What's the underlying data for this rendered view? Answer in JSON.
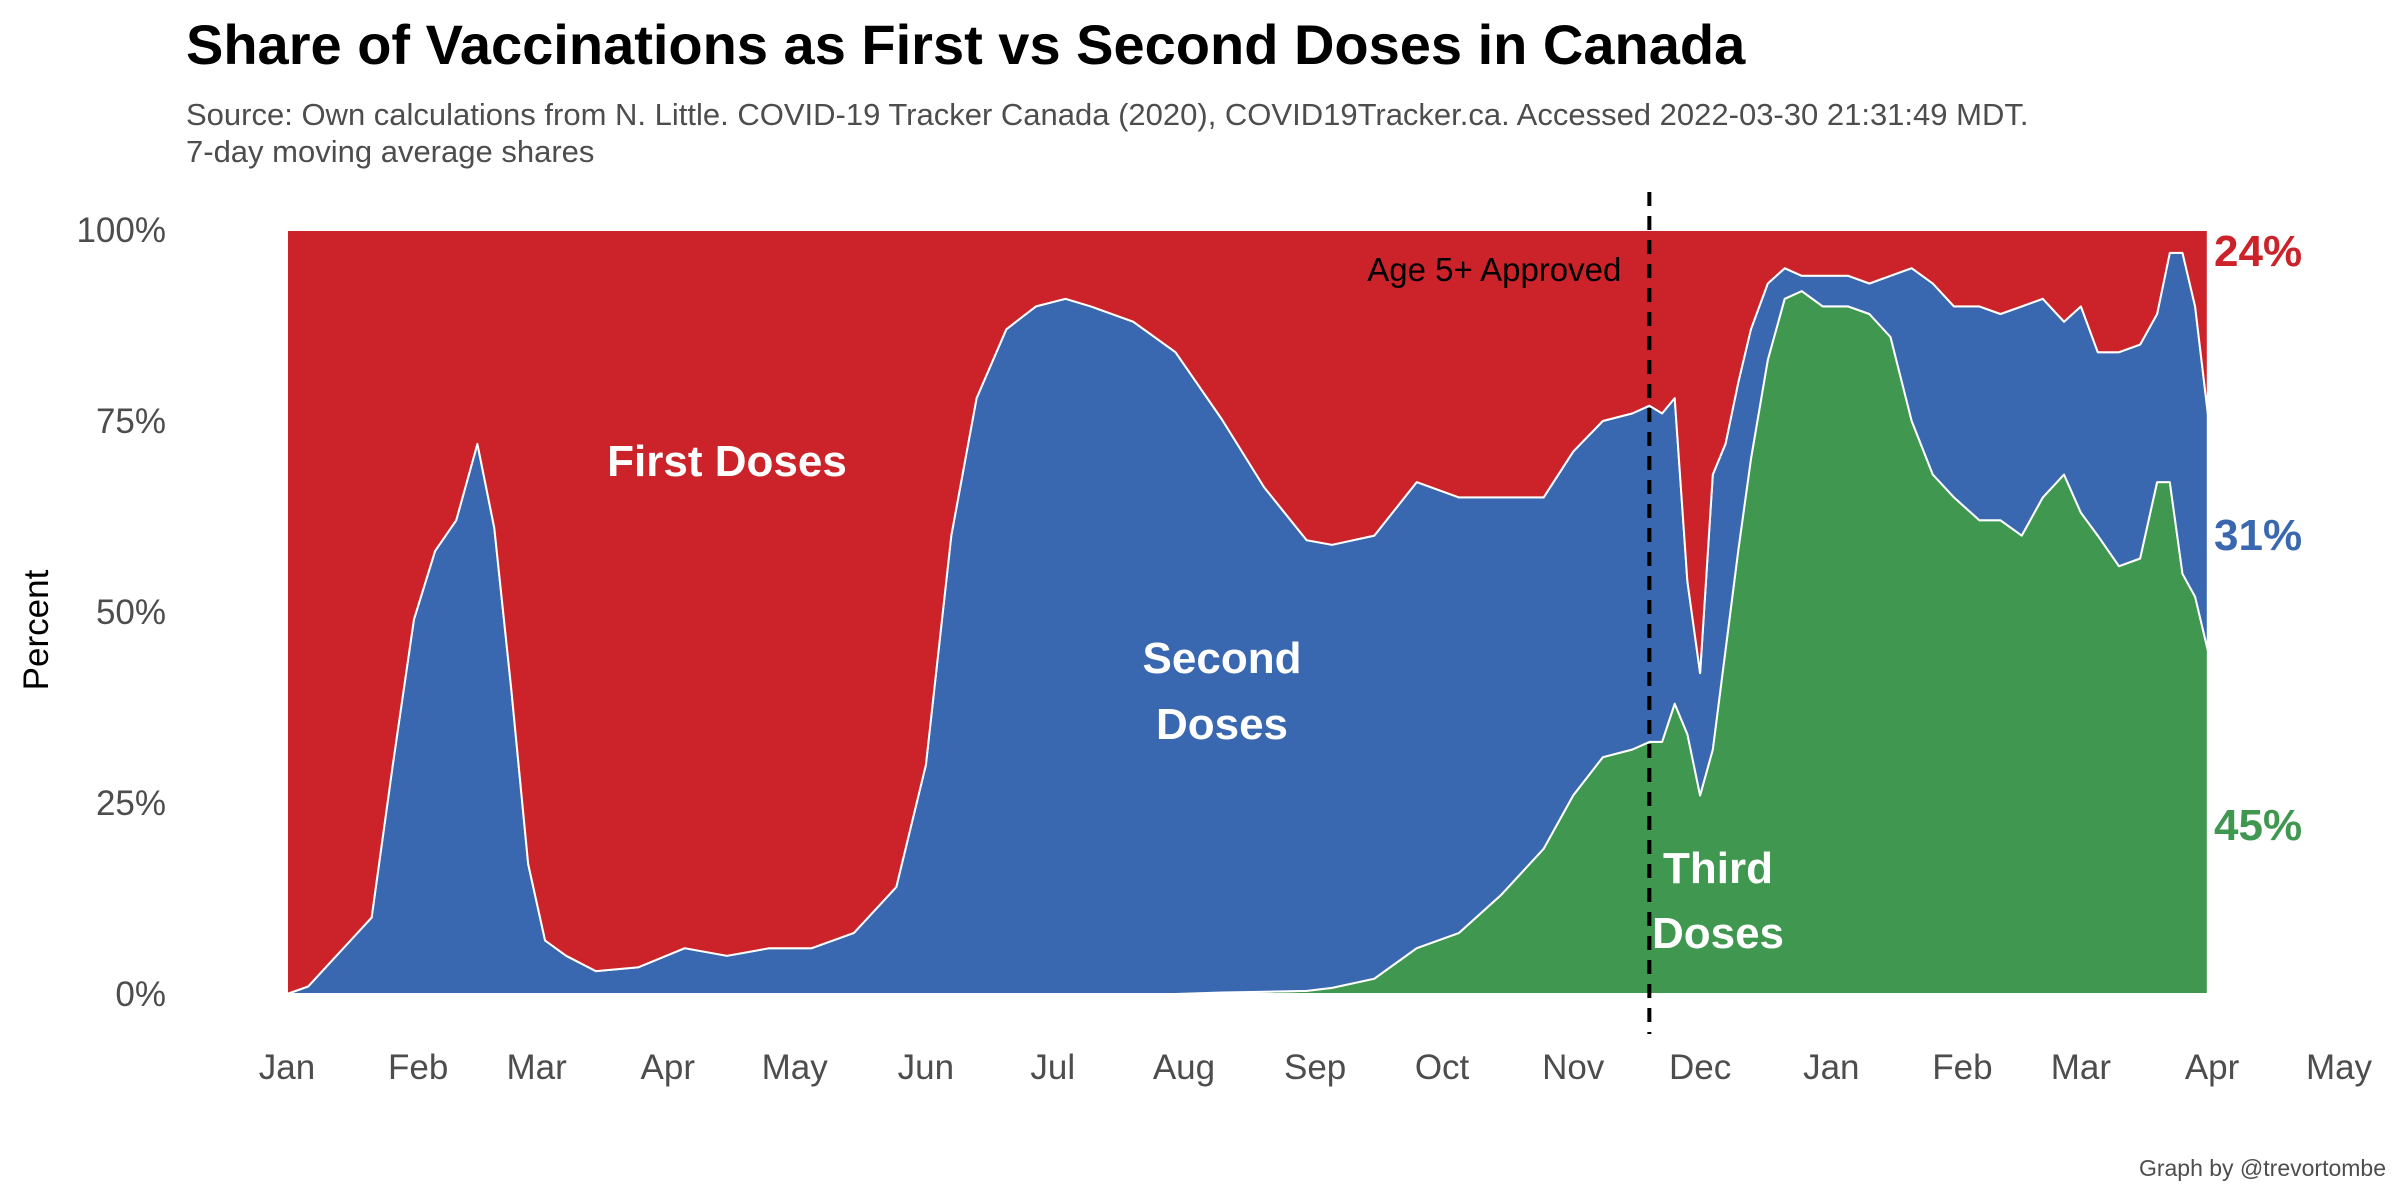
{
  "title": "Share of Vaccinations as First vs Second Doses in Canada",
  "subtitle_line1": "Source: Own calculations from N. Little. COVID-19 Tracker Canada (2020), COVID19Tracker.ca. Accessed 2022-03-30 21:31:49 MDT.",
  "subtitle_line2": "7-day moving average shares",
  "caption": "Graph by @trevortombe",
  "colors": {
    "first": "#cc2229",
    "second": "#3a68b0",
    "third": "#3f9750"
  },
  "chart_data": {
    "type": "area",
    "stacked": true,
    "title": "Share of Vaccinations as First vs Second Doses in Canada",
    "ylabel": "Percent",
    "xlabel": "",
    "ylim": [
      0,
      100
    ],
    "xlim": [
      "2021-01-01",
      "2022-05-01"
    ],
    "y_ticks": [
      "0%",
      "25%",
      "50%",
      "75%",
      "100%"
    ],
    "x_ticks": [
      {
        "date": "2021-01-01",
        "label": "Jan"
      },
      {
        "date": "2021-02-01",
        "label": "Feb"
      },
      {
        "date": "2021-03-01",
        "label": "Mar"
      },
      {
        "date": "2021-04-01",
        "label": "Apr"
      },
      {
        "date": "2021-05-01",
        "label": "May"
      },
      {
        "date": "2021-06-01",
        "label": "Jun"
      },
      {
        "date": "2021-07-01",
        "label": "Jul"
      },
      {
        "date": "2021-08-01",
        "label": "Aug"
      },
      {
        "date": "2021-09-01",
        "label": "Sep"
      },
      {
        "date": "2021-10-01",
        "label": "Oct"
      },
      {
        "date": "2021-11-01",
        "label": "Nov"
      },
      {
        "date": "2021-12-01",
        "label": "Dec"
      },
      {
        "date": "2022-01-01",
        "label": "Jan"
      },
      {
        "date": "2022-02-01",
        "label": "Feb"
      },
      {
        "date": "2022-03-01",
        "label": "Mar"
      },
      {
        "date": "2022-04-01",
        "label": "Apr"
      },
      {
        "date": "2022-05-01",
        "label": "May"
      }
    ],
    "series_labels": {
      "first": "First Doses",
      "second_line1": "Second",
      "second_line2": "Doses",
      "third_line1": "Third",
      "third_line2": "Doses"
    },
    "annotation": {
      "date": "2021-11-19",
      "label": "Age 5+ Approved",
      "style": "dashed vertical line"
    },
    "end_labels": {
      "first": "24%",
      "second": "31%",
      "third": "45%"
    },
    "dates": [
      "2021-01-01",
      "2021-01-06",
      "2021-01-11",
      "2021-01-16",
      "2021-01-21",
      "2021-01-26",
      "2021-01-31",
      "2021-02-05",
      "2021-02-10",
      "2021-02-15",
      "2021-02-19",
      "2021-02-23",
      "2021-02-27",
      "2021-03-03",
      "2021-03-08",
      "2021-03-15",
      "2021-03-25",
      "2021-04-05",
      "2021-04-15",
      "2021-04-25",
      "2021-05-05",
      "2021-05-15",
      "2021-05-25",
      "2021-06-01",
      "2021-06-07",
      "2021-06-13",
      "2021-06-20",
      "2021-06-27",
      "2021-07-04",
      "2021-07-10",
      "2021-07-20",
      "2021-07-30",
      "2021-08-10",
      "2021-08-20",
      "2021-08-30",
      "2021-09-05",
      "2021-09-15",
      "2021-09-25",
      "2021-10-05",
      "2021-10-15",
      "2021-10-25",
      "2021-11-01",
      "2021-11-08",
      "2021-11-15",
      "2021-11-19",
      "2021-11-22",
      "2021-11-25",
      "2021-11-28",
      "2021-12-01",
      "2021-12-04",
      "2021-12-07",
      "2021-12-10",
      "2021-12-13",
      "2021-12-17",
      "2021-12-21",
      "2021-12-25",
      "2021-12-30",
      "2022-01-05",
      "2022-01-10",
      "2022-01-15",
      "2022-01-20",
      "2022-01-25",
      "2022-01-30",
      "2022-02-05",
      "2022-02-10",
      "2022-02-15",
      "2022-02-20",
      "2022-02-25",
      "2022-03-01",
      "2022-03-05",
      "2022-03-10",
      "2022-03-15",
      "2022-03-19",
      "2022-03-22",
      "2022-03-25",
      "2022-03-28",
      "2022-03-31"
    ],
    "series": [
      {
        "name": "Third Doses",
        "key": "third",
        "values": [
          0,
          0,
          0,
          0,
          0,
          0,
          0,
          0,
          0,
          0,
          0,
          0,
          0,
          0,
          0,
          0,
          0,
          0,
          0,
          0,
          0,
          0,
          0,
          0,
          0,
          0,
          0,
          0,
          0,
          0,
          0,
          0,
          0.2,
          0.3,
          0.4,
          0.8,
          2,
          6,
          8,
          13,
          19,
          26,
          31,
          32,
          33,
          33,
          38,
          34,
          26,
          32,
          45,
          58,
          70,
          83,
          91,
          92,
          90,
          90,
          89,
          86,
          75,
          68,
          65,
          62,
          62,
          60,
          65,
          68,
          63,
          60,
          56,
          57,
          67,
          67,
          55,
          52,
          45
        ]
      },
      {
        "name": "Second Doses",
        "key": "second",
        "values": [
          0,
          1,
          4,
          7,
          10,
          30,
          49,
          58,
          62,
          72,
          61,
          40,
          17,
          7,
          5,
          3,
          3.5,
          6,
          5,
          6,
          6,
          8,
          14,
          30,
          60,
          78,
          87,
          90,
          91,
          90,
          88,
          84,
          75,
          66,
          59,
          58,
          58,
          61,
          57,
          52,
          46,
          45,
          44,
          44,
          44,
          43,
          40,
          20,
          16,
          36,
          27,
          22,
          17,
          10,
          4,
          2,
          4,
          4,
          4,
          8,
          20,
          25,
          25,
          28,
          27,
          30,
          26,
          20,
          27,
          24,
          28,
          28,
          22,
          30,
          42,
          38,
          31
        ]
      },
      {
        "name": "First Doses",
        "key": "first",
        "values": [
          100,
          99,
          96,
          93,
          90,
          70,
          51,
          42,
          38,
          28,
          39,
          60,
          83,
          93,
          95,
          97,
          96.5,
          94,
          95,
          94,
          94,
          92,
          86,
          70,
          40,
          22,
          13,
          10,
          9,
          10,
          12,
          16,
          24.8,
          33.7,
          40.6,
          41.2,
          40,
          33,
          35,
          35,
          35,
          29,
          25,
          24,
          23,
          24,
          22,
          46,
          58,
          32,
          28,
          20,
          13,
          7,
          5,
          6,
          6,
          6,
          7,
          6,
          5,
          7,
          10,
          10,
          11,
          10,
          9,
          12,
          10,
          16,
          16,
          15,
          11,
          3,
          3,
          10,
          24
        ]
      }
    ]
  }
}
